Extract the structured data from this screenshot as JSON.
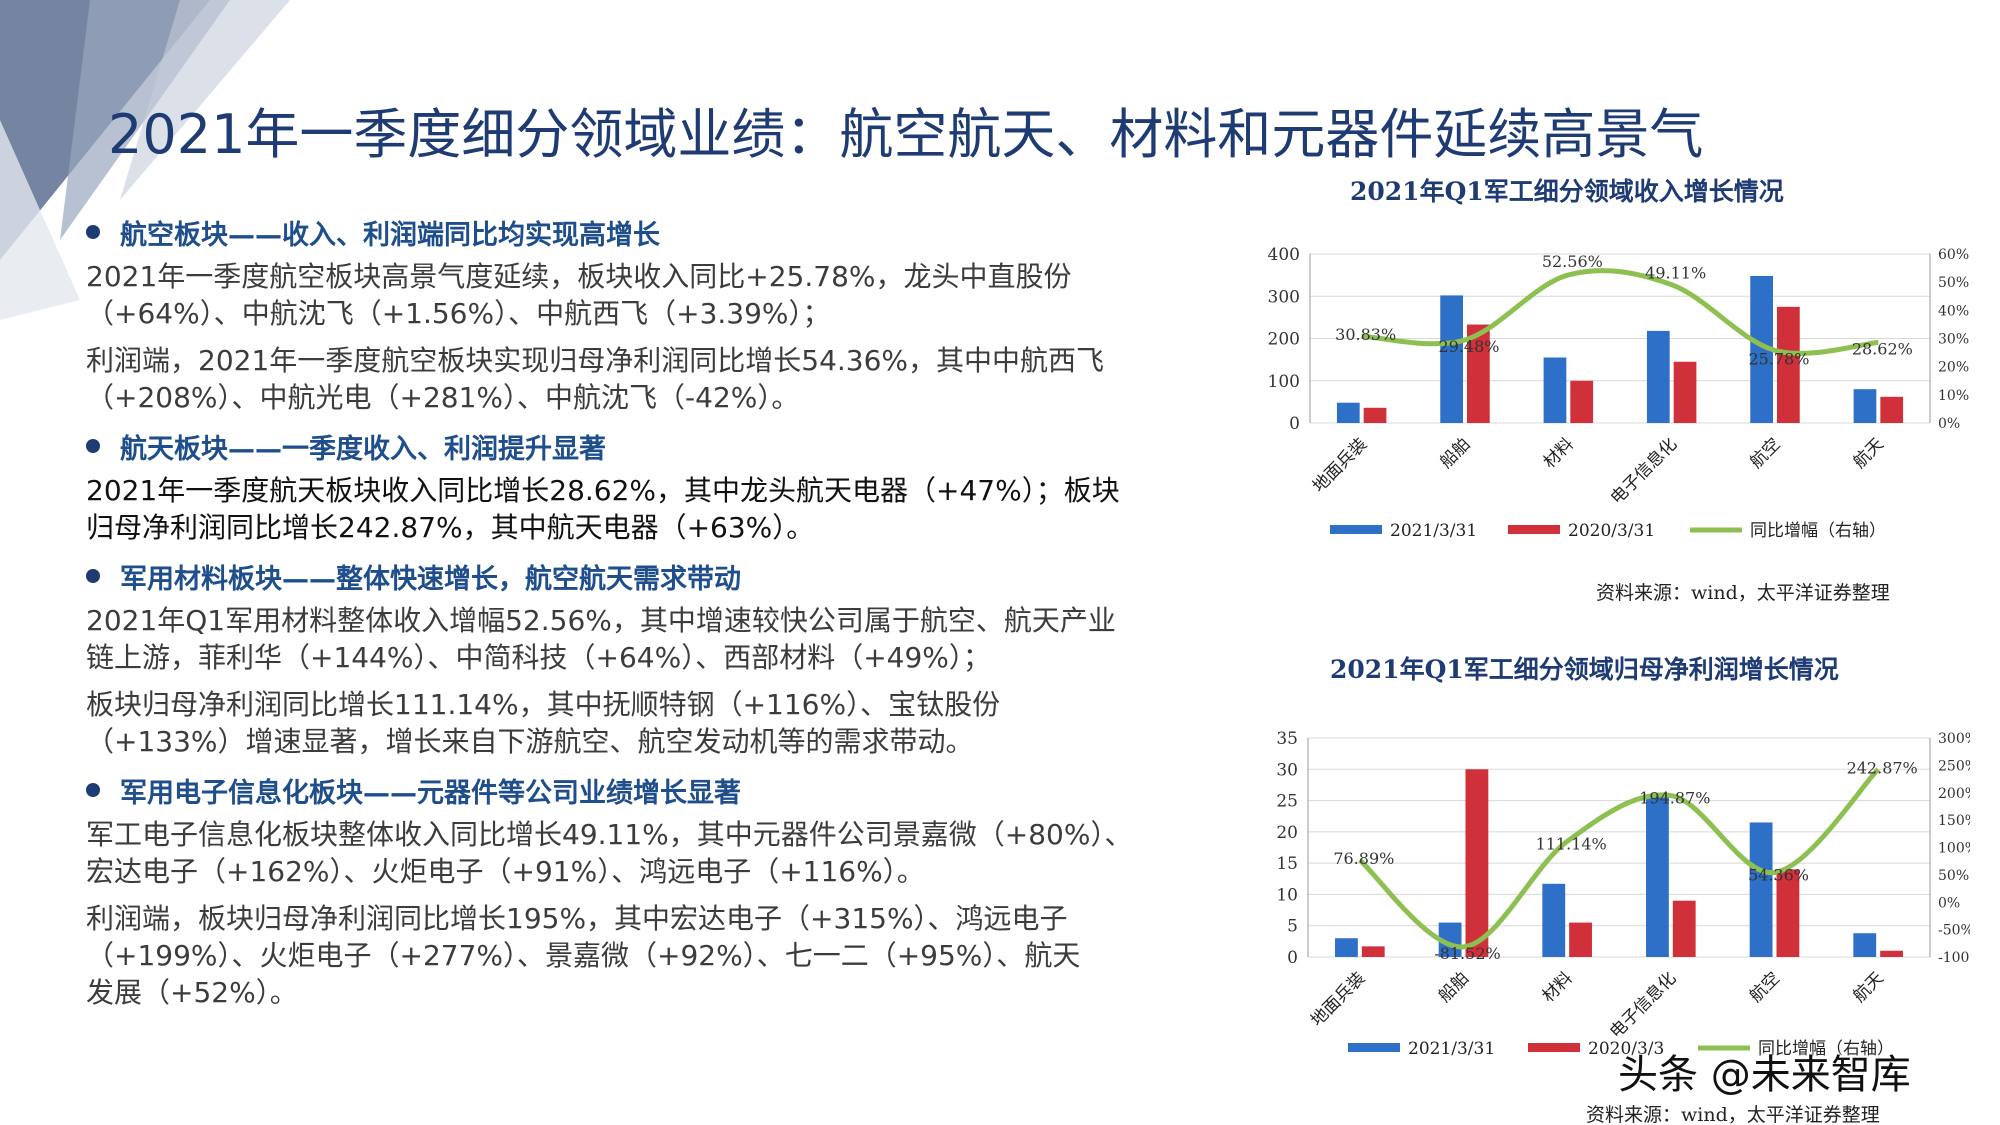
{
  "title": "2021年一季度细分领域业绩：航空航天、材料和元器件延续高景气",
  "sections": [
    {
      "heading": "航空板块——收入、利润端同比均实现高增长",
      "paragraphs": [
        [
          "2021年一季度航空板块高景气度延续，板块收入同比+25.78%，龙头中直股份",
          "（+64%）、中航沈飞（+1.56%）、中航西飞（+3.39%）；"
        ],
        [
          "利润端，2021年一季度航空板块实现归母净利润同比增长54.36%，其中中航西飞",
          "（+208%）、中航光电（+281%）、中航沈飞（-42%）。"
        ]
      ]
    },
    {
      "heading": "航天板块——一季度收入、利润提升显著",
      "paragraphs": [
        [
          "2021年一季度航天板块收入同比增长28.62%，其中龙头航天电器（+47%）；板块",
          "归母净利润同比增长242.87%，其中航天电器（+63%）。"
        ]
      ]
    },
    {
      "heading": "军用材料板块——整体快速增长，航空航天需求带动",
      "paragraphs": [
        [
          "2021年Q1军用材料整体收入增幅52.56%，其中增速较快公司属于航空、航天产业",
          "链上游，菲利华（+144%）、中简科技（+64%）、西部材料（+49%）；"
        ],
        [
          "板块归母净利润同比增长111.14%，其中抚顺特钢（+116%）、宝钛股份",
          "（+133%）增速显著，增长来自下游航空、航空发动机等的需求带动。"
        ]
      ]
    },
    {
      "heading": "军用电子信息化板块——元器件等公司业绩增长显著",
      "paragraphs": [
        [
          "军工电子信息化板块整体收入同比增长49.11%，其中元器件公司景嘉微（+80%）、",
          "宏达电子（+162%）、火炬电子（+91%）、鸿远电子（+116%）。"
        ],
        [
          "利润端，板块归母净利润同比增长195%，其中宏达电子（+315%）、鸿远电子",
          "（+199%）、火炬电子（+277%）、景嘉微（+92%）、七一二（+95%）、航天",
          "发展（+52%）。"
        ]
      ]
    }
  ],
  "charts": {
    "revenue_title": "2021年Q1军工细分领域收入增长情况",
    "profit_title": "2021年Q1军工细分领域归母净利润增长情况",
    "source_1": "资料来源：wind，太平洋证券整理",
    "source_2": "资料来源：wind，太平洋证券整理"
  },
  "watermark": "头条 @未来智库",
  "colors": {
    "series_2021": "#2e6fc7",
    "series_2020": "#d0303a",
    "growth_line": "#8dc051",
    "title": "#1f3b73"
  },
  "chart_data": [
    {
      "type": "bar",
      "title": "2021年Q1军工细分领域收入增长情况",
      "categories": [
        "地面兵装",
        "船舶",
        "材料",
        "电子信息化",
        "航空",
        "航天"
      ],
      "series": [
        {
          "name": "2021/3/31",
          "values": [
            48,
            302,
            155,
            218,
            348,
            80
          ]
        },
        {
          "name": "2020/3/31",
          "values": [
            36,
            233,
            100,
            145,
            275,
            62
          ]
        },
        {
          "name": "同比增幅（右轴）",
          "type": "line",
          "axis": "right",
          "values": [
            30.83,
            29.48,
            52.56,
            49.11,
            25.78,
            28.62
          ],
          "labels": [
            "30.83%",
            "29.48%",
            "52.56%",
            "49.11%",
            "25.78%",
            "28.62%"
          ]
        }
      ],
      "ylim": [
        0,
        400
      ],
      "yticks": [
        "0",
        "100",
        "200",
        "300",
        "400"
      ],
      "y2lim": [
        0,
        60
      ],
      "y2ticks": [
        "0%",
        "10%",
        "20%",
        "30%",
        "40%",
        "50%",
        "60%"
      ],
      "legend": "bottom",
      "grid": true
    },
    {
      "type": "bar",
      "title": "2021年Q1军工细分领域归母净利润增长情况",
      "categories": [
        "地面兵装",
        "船舶",
        "材料",
        "电子信息化",
        "航空",
        "航天"
      ],
      "series": [
        {
          "name": "2021/3/31",
          "values": [
            3,
            5.5,
            11.7,
            25.5,
            21.5,
            3.8
          ]
        },
        {
          "name": "2020/3/3",
          "values": [
            1.7,
            30,
            5.5,
            9,
            14,
            1
          ]
        },
        {
          "name": "同比增幅（右轴）",
          "type": "line",
          "axis": "right",
          "values": [
            76.89,
            -81.52,
            111.14,
            194.87,
            54.36,
            242.87
          ],
          "labels": [
            "76.89%",
            "-81.52%",
            "111.14%",
            "194.87%",
            "54.36%",
            "242.87%"
          ]
        }
      ],
      "ylim": [
        0,
        35
      ],
      "yticks": [
        "0",
        "5",
        "10",
        "15",
        "20",
        "25",
        "30",
        "35"
      ],
      "y2lim": [
        -100,
        300
      ],
      "y2ticks": [
        "-100%",
        "-50%",
        "0%",
        "50%",
        "100%",
        "150%",
        "200%",
        "250%",
        "300%"
      ],
      "legend": "bottom",
      "grid": true
    }
  ]
}
